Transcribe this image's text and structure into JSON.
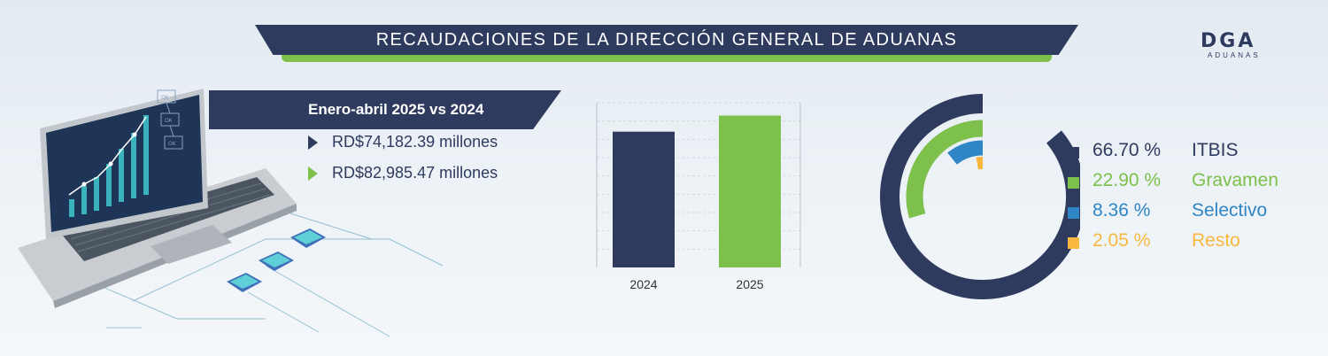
{
  "header": {
    "title": "RECAUDACIONES DE LA DIRECCIÓN GENERAL DE ADUANAS"
  },
  "logo": {
    "letters": "DGA",
    "subtitle": "ADUANAS"
  },
  "laptop_screen": {
    "labels": [
      "OK",
      "OK",
      "OK"
    ]
  },
  "period": {
    "label": "Enero-abril 2025 vs 2024"
  },
  "amounts": [
    {
      "year": "2024",
      "text": "RD$74,182.39 millones",
      "color": "#2e3b5f"
    },
    {
      "year": "2025",
      "text": "RD$82,985.47 millones",
      "color": "#7dc04b"
    }
  ],
  "colors": {
    "navy": "#2e3b5f",
    "green": "#7dc04b",
    "blue": "#2f86c6",
    "yellow": "#f8b840"
  },
  "chart_data": [
    {
      "type": "bar",
      "categories": [
        "2024",
        "2025"
      ],
      "values": [
        74182.39,
        82985.47
      ],
      "colors": [
        "#2e3b5f",
        "#7dc04b"
      ],
      "ylim": [
        0,
        90000
      ],
      "grid": true,
      "legend": "none"
    },
    {
      "type": "pie",
      "style": "concentric-arcs",
      "labels": [
        "ITBIS",
        "Gravamen",
        "Selectivo",
        "Resto"
      ],
      "values": [
        66.7,
        22.9,
        8.36,
        2.05
      ],
      "value_labels": [
        "66.70 %",
        "22.90 %",
        "8.36 %",
        "2.05 %"
      ],
      "colors": [
        "#2e3b5f",
        "#7dc04b",
        "#2f86c6",
        "#f8b840"
      ],
      "legend": "right"
    }
  ]
}
